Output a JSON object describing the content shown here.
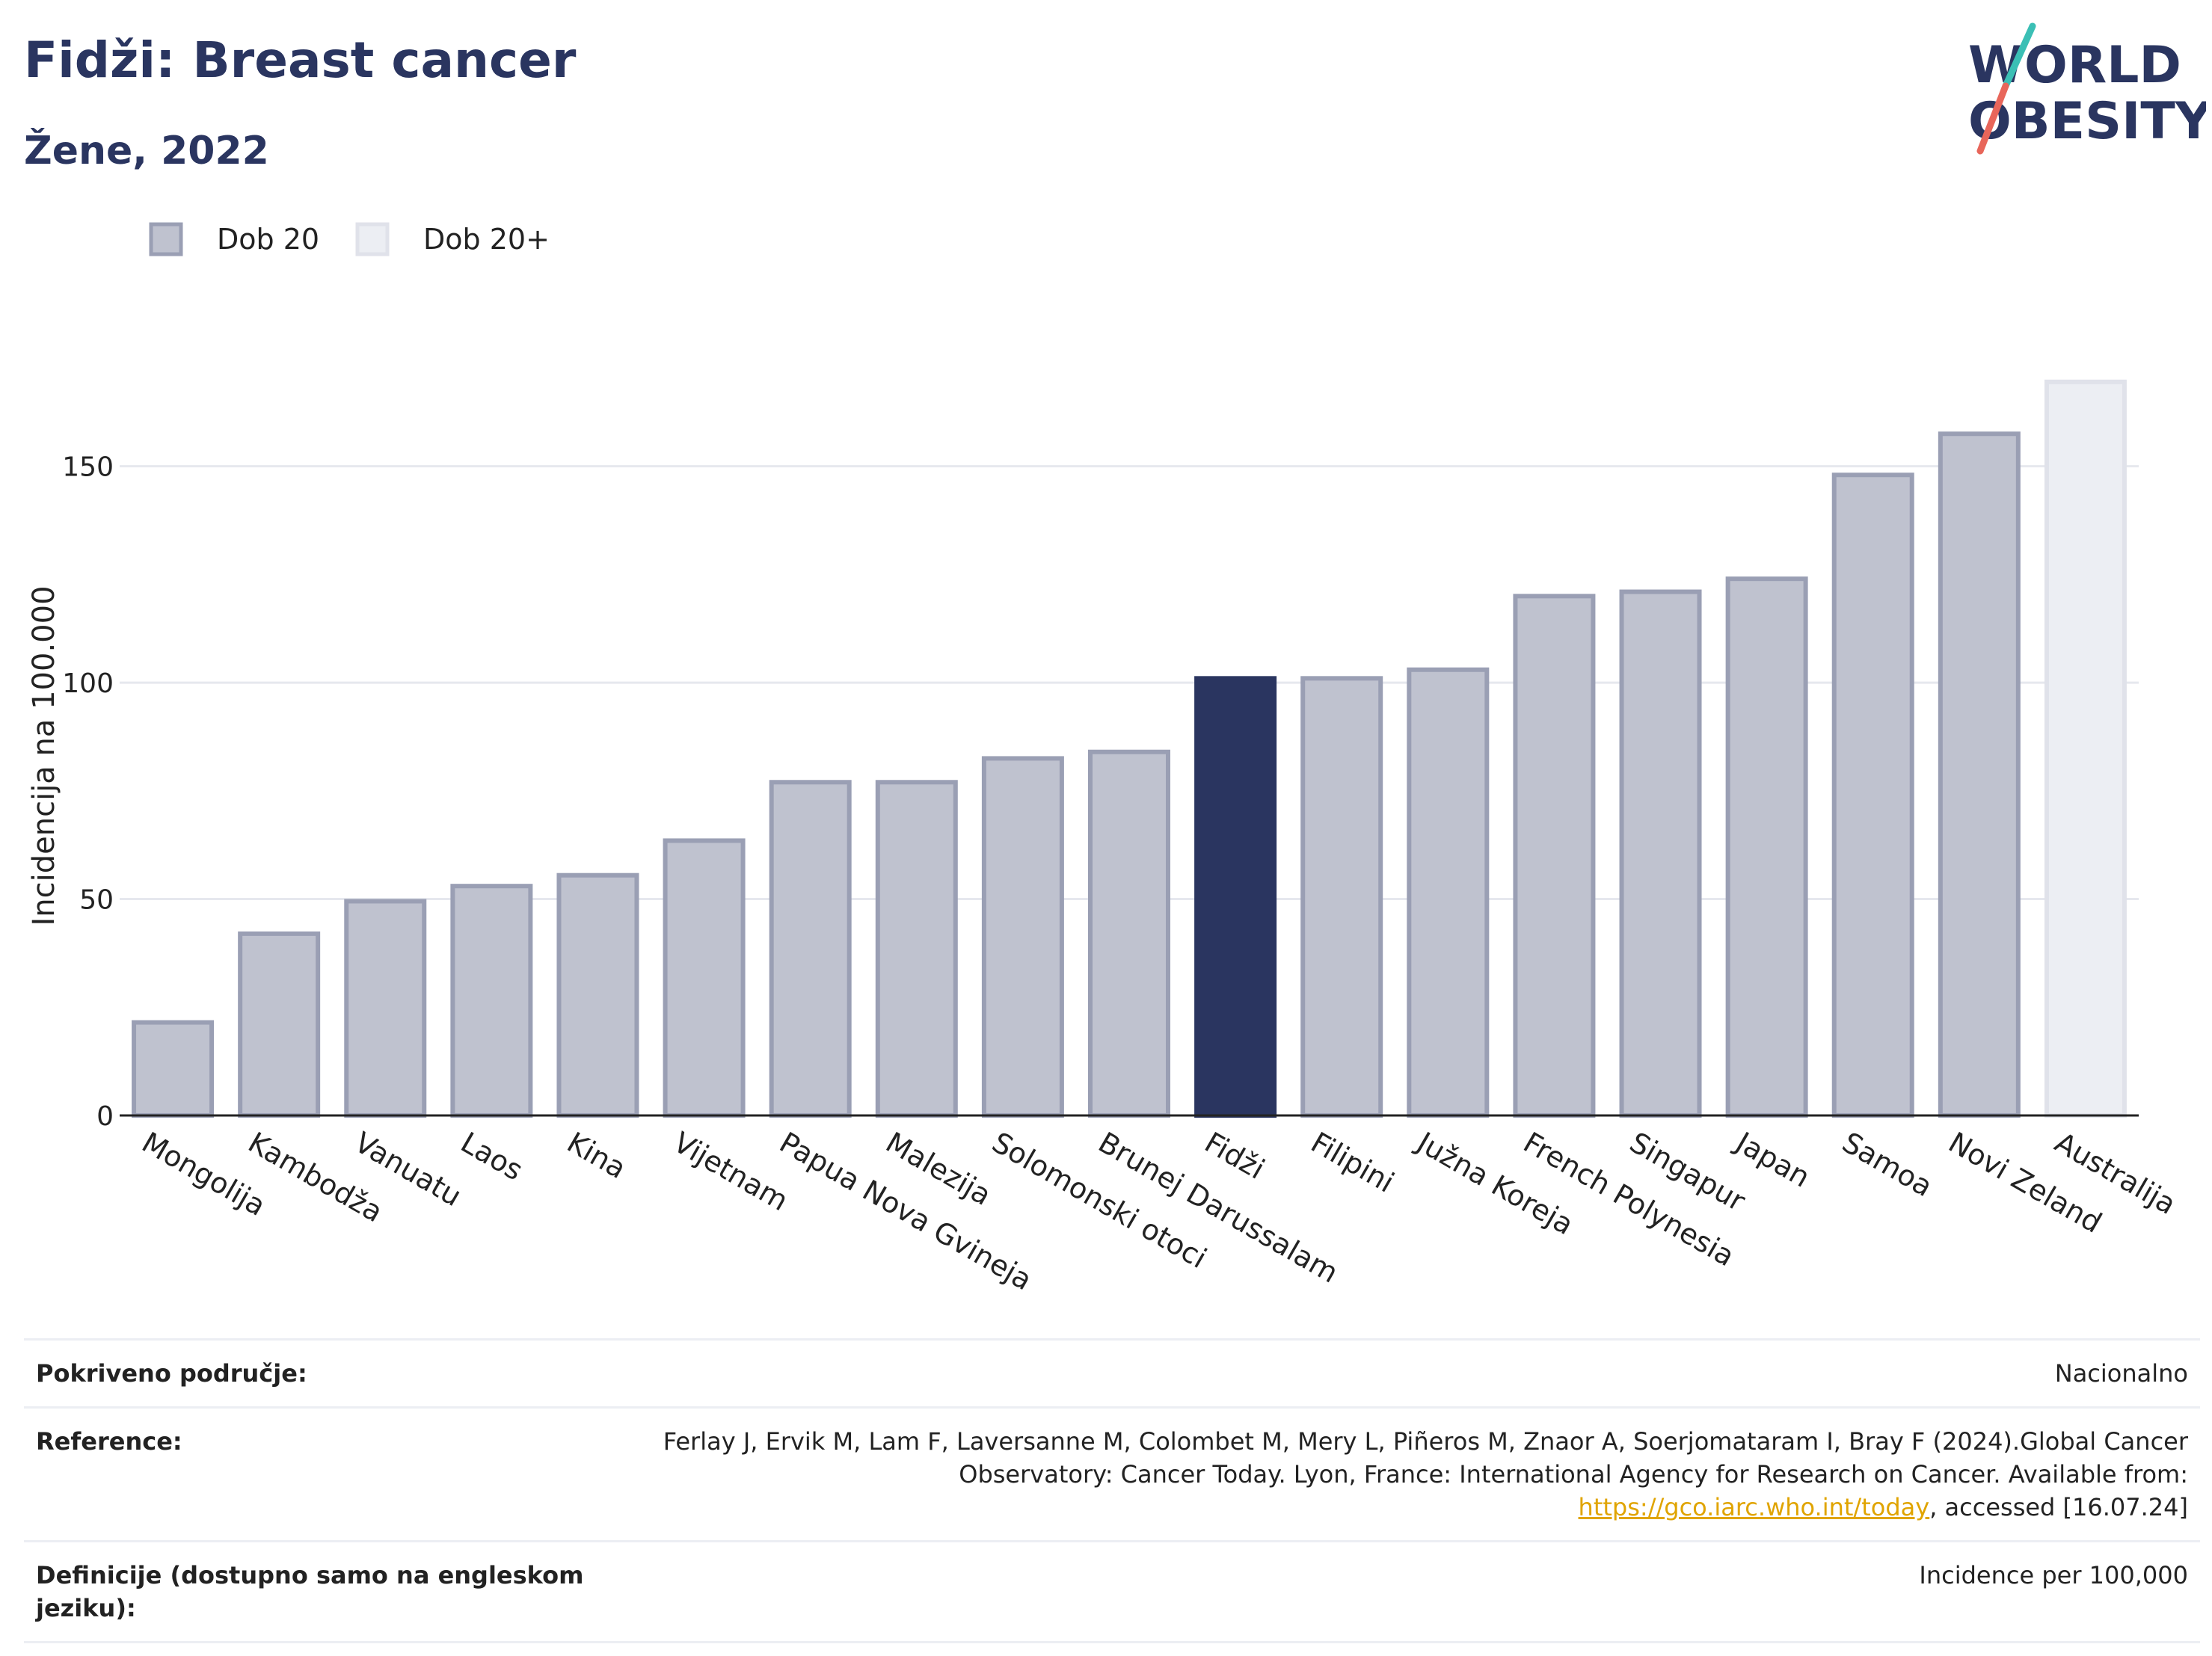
{
  "header": {
    "title": "Fidži: Breast cancer",
    "subtitle": "Žene, 2022"
  },
  "logo": {
    "line1": "WORLD",
    "line2": "OBESITY"
  },
  "chart_data": {
    "type": "bar",
    "ylabel": "Incidencija na 100.000",
    "ylim": [
      0,
      180
    ],
    "yticks": [
      0,
      50,
      100,
      150
    ],
    "grid": true,
    "legend": [
      {
        "name": "Dob 20",
        "color": "#bfc2cf"
      },
      {
        "name": "Dob 20+",
        "color": "#eceef3"
      }
    ],
    "categories": [
      "Mongolija",
      "Kambodža",
      "Vanuatu",
      "Laos",
      "Kina",
      "Vijetnam",
      "Papua Nova Gvineja",
      "Malezija",
      "Solomonski otoci",
      "Brunej Darussalam",
      "Fidži",
      "Filipini",
      "Južna Koreja",
      "French Polynesia",
      "Singapur",
      "Japan",
      "Samoa",
      "Novi Zeland",
      "Australija"
    ],
    "values": [
      21.5,
      42,
      49.5,
      53,
      55.5,
      63.5,
      77,
      77,
      82.5,
      84,
      101,
      101,
      103,
      120,
      121,
      124,
      148,
      157.5,
      169.5
    ],
    "bar_styles": [
      "age20",
      "age20",
      "age20",
      "age20",
      "age20",
      "age20",
      "age20",
      "age20",
      "age20",
      "age20",
      "highlight",
      "age20",
      "age20",
      "age20",
      "age20",
      "age20",
      "age20",
      "age20",
      "age20plus"
    ],
    "colors": {
      "age20": "#bfc2cf",
      "age20_stroke": "#9a9fb4",
      "highlight": "#2a3560",
      "age20plus": "#eceef3",
      "age20plus_stroke": "#e0e2ea"
    }
  },
  "info": {
    "rows": [
      {
        "label": "Pokriveno područje:",
        "value": "Nacionalno"
      },
      {
        "label": "Reference:",
        "value_pre": "Ferlay J, Ervik M, Lam F, Laversanne M, Colombet M, Mery L, Piñeros M, Znaor A, Soerjomataram I, Bray F (2024).Global Cancer Observatory: Cancer Today. Lyon, France: International Agency for Research on Cancer. Available from: ",
        "link": "https://gco.iarc.who.int/today",
        "value_post": ", accessed [16.07.24]"
      },
      {
        "label": "Definicije (dostupno samo na engleskom jeziku):",
        "value": "Incidence per 100,000"
      }
    ]
  }
}
